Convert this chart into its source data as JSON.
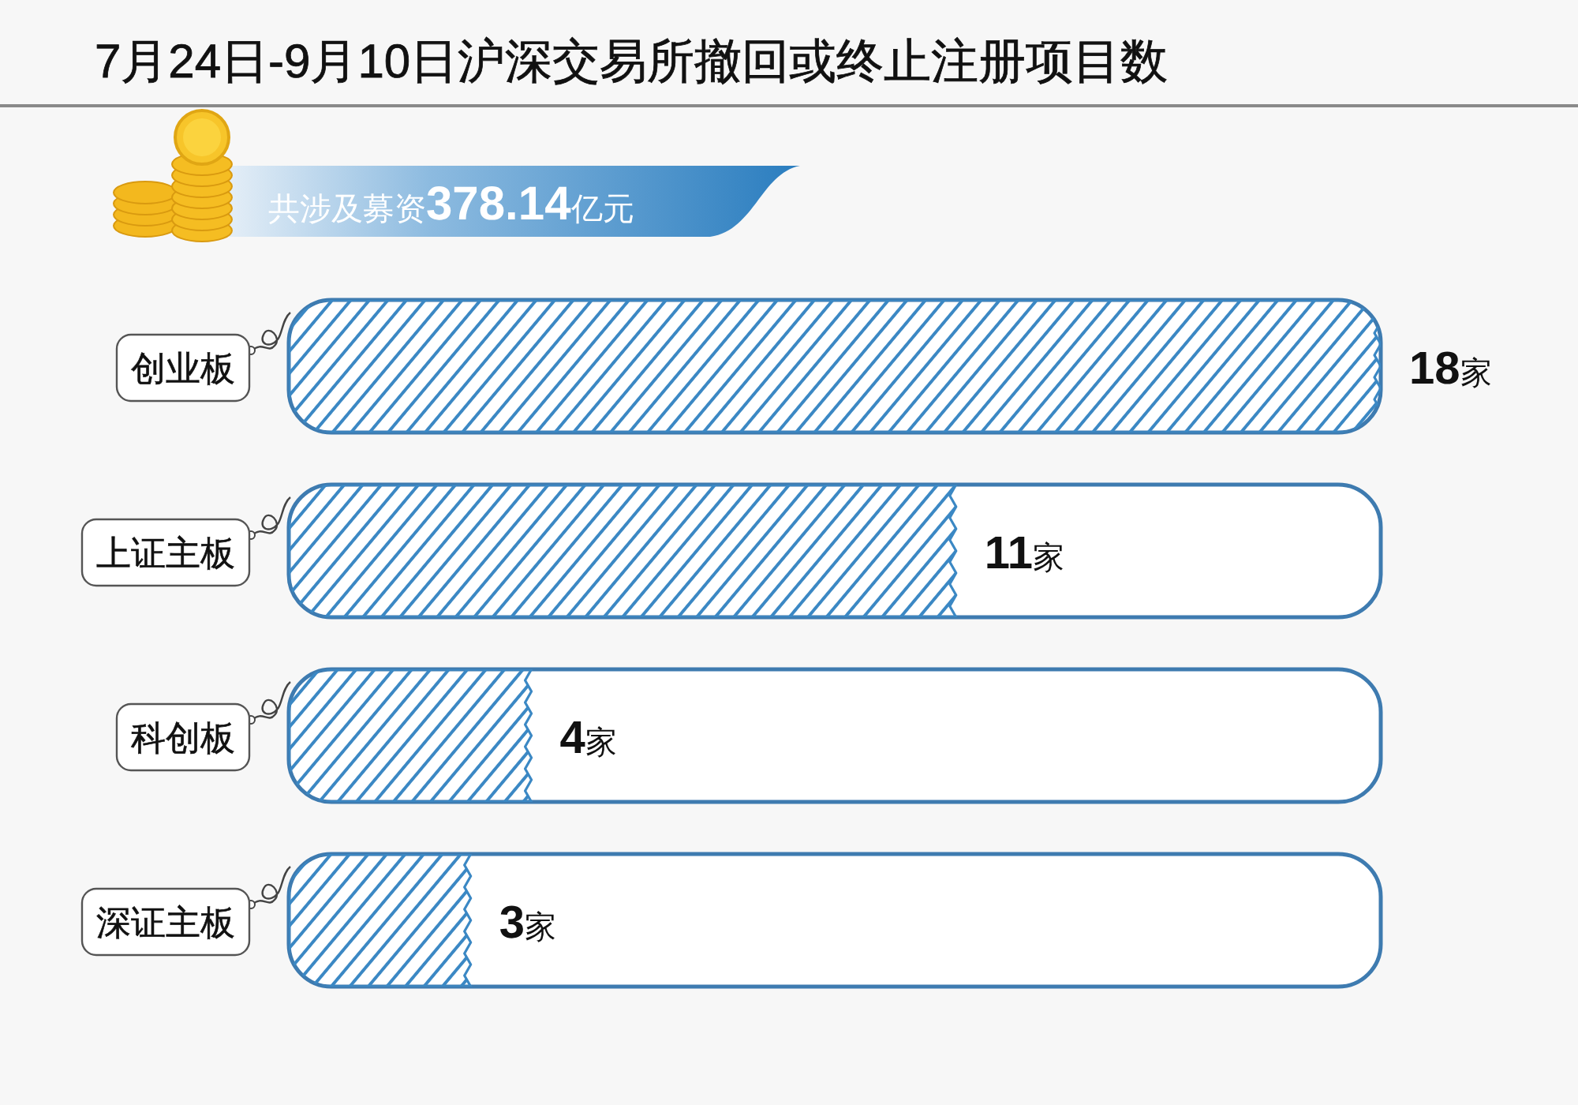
{
  "chart_data": {
    "type": "bar",
    "orientation": "horizontal",
    "title": "7月24日-9月10日沪深交易所撤回或终止注册项目数",
    "annotations": [
      "共涉及募资**378.14**亿元"
    ],
    "categories": [
      "创业板",
      "上证主板",
      "科创板",
      "深证主板"
    ],
    "values": [
      18,
      11,
      4,
      3
    ],
    "color": "#3b88c4",
    "value_labels": [
      "**18**家",
      "**11**家",
      "**4**家",
      "**3**家"
    ]
  }
}
